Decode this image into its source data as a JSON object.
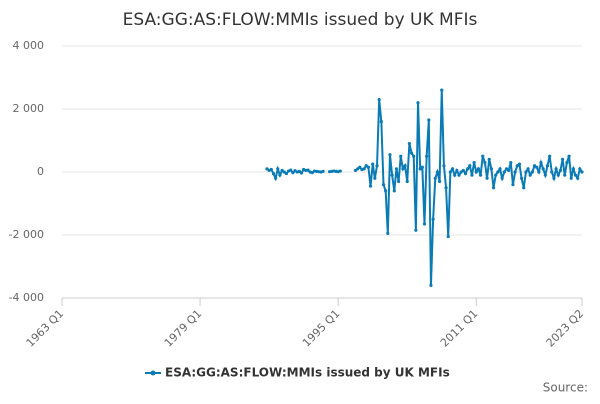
{
  "chart_data": {
    "type": "line",
    "title": "ESA:GG:AS:FLOW:MMIs issued by UK MFIs",
    "source": "Source:",
    "x": [
      "1986 Q4",
      "1987 Q1",
      "1987 Q2",
      "1987 Q3",
      "1987 Q4",
      "1988 Q1",
      "1988 Q2",
      "1988 Q3",
      "1988 Q4",
      "1989 Q1",
      "1989 Q2",
      "1989 Q3",
      "1989 Q4",
      "1990 Q1",
      "1990 Q2",
      "1990 Q3",
      "1990 Q4",
      "1991 Q1",
      "1991 Q2",
      "1991 Q3",
      "1991 Q4",
      "1992 Q1",
      "1992 Q2",
      "1992 Q3",
      "1992 Q4",
      "1993 Q1",
      "1993 Q2",
      "1993 Q3",
      "1993 Q4",
      "1994 Q1",
      "1994 Q2",
      "1994 Q3",
      "1994 Q4",
      "1995 Q1",
      "1995 Q2",
      "1995 Q3",
      "1995 Q4",
      "1996 Q1",
      "1996 Q2",
      "1996 Q3",
      "1996 Q4",
      "1997 Q1",
      "1997 Q2",
      "1997 Q3",
      "1997 Q4",
      "1998 Q1",
      "1998 Q2",
      "1998 Q3",
      "1998 Q4",
      "1999 Q1",
      "1999 Q2",
      "1999 Q3",
      "1999 Q4",
      "2000 Q1",
      "2000 Q2",
      "2000 Q3",
      "2000 Q4",
      "2001 Q1",
      "2001 Q2",
      "2001 Q3",
      "2001 Q4",
      "2002 Q1",
      "2002 Q2",
      "2002 Q3",
      "2002 Q4",
      "2003 Q1",
      "2003 Q2",
      "2003 Q3",
      "2003 Q4",
      "2004 Q1",
      "2004 Q2",
      "2004 Q3",
      "2004 Q4",
      "2005 Q1",
      "2005 Q2",
      "2005 Q3",
      "2005 Q4",
      "2006 Q1",
      "2006 Q2",
      "2006 Q3",
      "2006 Q4",
      "2007 Q1",
      "2007 Q2",
      "2007 Q3",
      "2007 Q4",
      "2008 Q1",
      "2008 Q2",
      "2008 Q3",
      "2008 Q4",
      "2009 Q1",
      "2009 Q2",
      "2009 Q3",
      "2009 Q4",
      "2010 Q1",
      "2010 Q2",
      "2010 Q3",
      "2010 Q4",
      "2011 Q1",
      "2011 Q2",
      "2011 Q3",
      "2011 Q4",
      "2012 Q1",
      "2012 Q2",
      "2012 Q3",
      "2012 Q4",
      "2013 Q1",
      "2013 Q2",
      "2013 Q3",
      "2013 Q4",
      "2014 Q1",
      "2014 Q2",
      "2014 Q3",
      "2014 Q4",
      "2015 Q1",
      "2015 Q2",
      "2015 Q3",
      "2015 Q4",
      "2016 Q1",
      "2016 Q2",
      "2016 Q3",
      "2016 Q4",
      "2017 Q1",
      "2017 Q2",
      "2017 Q3",
      "2017 Q4",
      "2018 Q1",
      "2018 Q2",
      "2018 Q3",
      "2018 Q4",
      "2019 Q1",
      "2019 Q2",
      "2019 Q3",
      "2019 Q4",
      "2020 Q1",
      "2020 Q2",
      "2020 Q3",
      "2020 Q4",
      "2021 Q1",
      "2021 Q2",
      "2021 Q3",
      "2021 Q4",
      "2022 Q1",
      "2022 Q2",
      "2022 Q3",
      "2022 Q4",
      "2023 Q1",
      "2023 Q2"
    ],
    "series": [
      {
        "name": "ESA:GG:AS:FLOW:MMIs issued by UK MFIs",
        "color": "#0a7bb5",
        "values": [
          100,
          50,
          80,
          -50,
          -200,
          100,
          -100,
          50,
          0,
          -50,
          30,
          60,
          -20,
          40,
          0,
          20,
          -30,
          80,
          50,
          60,
          0,
          -20,
          30,
          20,
          10,
          0,
          20,
          null,
          null,
          10,
          20,
          30,
          20,
          10,
          30,
          null,
          null,
          null,
          null,
          null,
          null,
          50,
          100,
          150,
          80,
          100,
          200,
          150,
          -450,
          250,
          -200,
          200,
          2300,
          1600,
          -400,
          -600,
          -1950,
          550,
          -100,
          -600,
          100,
          -300,
          500,
          100,
          200,
          -300,
          900,
          600,
          500,
          -1850,
          2200,
          100,
          150,
          -1650,
          500,
          1650,
          -3600,
          -1500,
          -200,
          0,
          -300,
          2600,
          200,
          -500,
          -2050,
          0,
          100,
          -100,
          50,
          -100,
          0,
          50,
          -50,
          100,
          200,
          -100,
          300,
          0,
          100,
          -100,
          500,
          300,
          -200,
          400,
          100,
          -500,
          -100,
          0,
          100,
          -200,
          0,
          100,
          50,
          300,
          -400,
          0,
          200,
          250,
          -200,
          -500,
          0,
          100,
          -100,
          0,
          200,
          150,
          0,
          300,
          100,
          -100,
          200,
          500,
          0,
          -200,
          100,
          -100,
          50,
          400,
          -100,
          300,
          500,
          -200,
          100,
          -100,
          -200,
          100,
          0
        ]
      }
    ],
    "xlim": [
      "1963 Q1",
      "2023 Q2"
    ],
    "xticks": [
      "1963 Q1",
      "1979 Q1",
      "1995 Q1",
      "2011 Q1",
      "2023 Q2"
    ],
    "ylim": [
      -4000,
      4000
    ],
    "yticks": [
      {
        "value": -4000,
        "label": "-4 000"
      },
      {
        "value": -2000,
        "label": "-2 000"
      },
      0,
      {
        "value": 2000,
        "label": "2 000"
      },
      {
        "value": 4000,
        "label": "4 000"
      }
    ],
    "grid": true,
    "legend": "bottom"
  }
}
